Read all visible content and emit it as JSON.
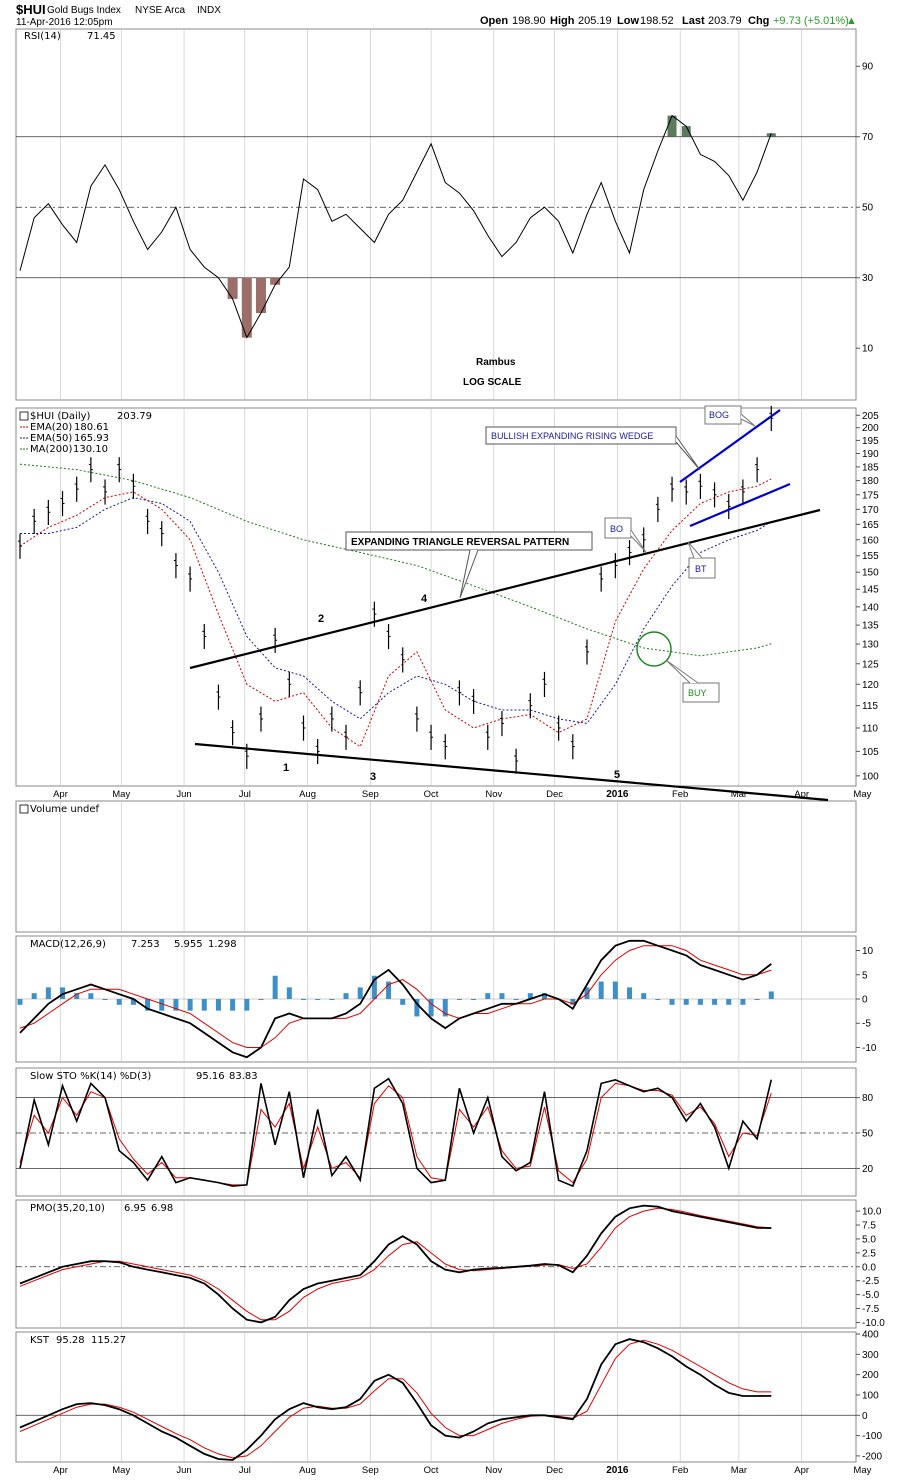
{
  "header": {
    "symbol": "$HUI",
    "name": "Gold Bugs Index",
    "exchange": "NYSE Arca",
    "type": "INDX",
    "datetime": "11-Apr-2016 12:05pm",
    "open_label": "Open",
    "open": "198.90",
    "high_label": "High",
    "high": "205.19",
    "low_label": "Low",
    "low": "198.52",
    "last_label": "Last",
    "last": "203.79",
    "chg_label": "Chg",
    "chg": "+9.73 (+5.01%)",
    "chg_arrow": "▲"
  },
  "colors": {
    "price": "#000000",
    "ema20": "#cc0000",
    "ema50": "#1a1a99",
    "ma200": "#1e7a1e",
    "rsi_over": "#5c7a5c",
    "rsi_under": "#9b6e6a",
    "hist": "#3d8fc7",
    "signal": "#dd0000",
    "wedge": "#0000cc",
    "grid": "#c0c0c0"
  },
  "x_axis": {
    "months": [
      {
        "label": "Apr",
        "bold": false
      },
      {
        "label": "May",
        "bold": false
      },
      {
        "label": "Jun",
        "bold": false
      },
      {
        "label": "Jul",
        "bold": false
      },
      {
        "label": "Aug",
        "bold": false
      },
      {
        "label": "Sep",
        "bold": false
      },
      {
        "label": "Oct",
        "bold": false
      },
      {
        "label": "Nov",
        "bold": false
      },
      {
        "label": "Dec",
        "bold": false
      },
      {
        "label": "2016",
        "bold": true
      },
      {
        "label": "Feb",
        "bold": false
      },
      {
        "label": "Mar",
        "bold": false
      },
      {
        "label": "Apr",
        "bold": false
      },
      {
        "label": "May",
        "bold": false
      }
    ]
  },
  "chart_data": [
    {
      "panel": "rsi",
      "type": "line",
      "title": "RSI(14)",
      "value": "71.45",
      "y_ticks": [
        "90",
        "70",
        "50",
        "30",
        "10"
      ],
      "levels": [
        70,
        50,
        30
      ],
      "ylim": [
        0,
        100
      ],
      "x_days": [
        0,
        7,
        14,
        21,
        28,
        35,
        42,
        49,
        56,
        63,
        70,
        77,
        84,
        91,
        98,
        105,
        112,
        119,
        126,
        133,
        140,
        147,
        154,
        161,
        168,
        175,
        182,
        189,
        196,
        203,
        210,
        217,
        224,
        231,
        238,
        245,
        252,
        259,
        266,
        273,
        280,
        287,
        294,
        301,
        308,
        315,
        322,
        329,
        336,
        343,
        350,
        357,
        364,
        371
      ],
      "values": [
        32,
        47,
        51,
        45,
        40,
        56,
        62,
        55,
        46,
        38,
        43,
        50,
        38,
        33,
        30,
        24,
        13,
        20,
        28,
        33,
        58,
        55,
        46,
        48,
        44,
        40,
        48,
        52,
        60,
        68,
        57,
        54,
        49,
        42,
        36,
        40,
        47,
        50,
        46,
        37,
        48,
        57,
        46,
        37,
        55,
        66,
        76,
        73,
        65,
        63,
        59,
        52,
        60,
        71
      ]
    },
    {
      "panel": "price",
      "type": "line",
      "title": "$HUI (Daily)",
      "value": "203.79",
      "scale": "log",
      "y_ticks": [
        "205",
        "200",
        "195",
        "190",
        "185",
        "180",
        "175",
        "170",
        "165",
        "160",
        "155",
        "150",
        "145",
        "140",
        "135",
        "130",
        "125",
        "120",
        "115",
        "110",
        "105",
        "100"
      ],
      "ylim": [
        98,
        208
      ],
      "series": [
        {
          "name": "$HUI (Daily)",
          "value": "203.79",
          "x_days": [
            0,
            7,
            14,
            21,
            28,
            35,
            42,
            49,
            56,
            63,
            70,
            77,
            84,
            91,
            98,
            105,
            112,
            119,
            126,
            133,
            140,
            147,
            154,
            161,
            168,
            175,
            182,
            189,
            196,
            203,
            210,
            217,
            224,
            231,
            238,
            245,
            252,
            259,
            266,
            273,
            280,
            287,
            294,
            301,
            308,
            315,
            322,
            329,
            336,
            343,
            350,
            357,
            364,
            371
          ],
          "values": [
            158,
            166,
            169,
            172,
            177,
            184,
            176,
            184,
            178,
            166,
            162,
            152,
            148,
            132,
            117,
            109,
            104,
            112,
            131,
            120,
            110,
            105,
            112,
            108,
            118,
            138,
            132,
            126,
            112,
            108,
            106,
            118,
            116,
            108,
            111,
            103,
            115,
            120,
            110,
            106,
            128,
            148,
            152,
            156,
            160,
            170,
            177,
            176,
            178,
            175,
            171,
            176,
            184,
            203.79
          ]
        },
        {
          "name": "EMA(20)",
          "value": "180.61",
          "x_days": [
            0,
            14,
            28,
            42,
            56,
            70,
            84,
            98,
            112,
            126,
            140,
            154,
            168,
            182,
            196,
            210,
            224,
            238,
            252,
            266,
            280,
            294,
            308,
            322,
            336,
            350,
            364,
            371
          ],
          "values": [
            158,
            164,
            168,
            174,
            176,
            170,
            160,
            138,
            120,
            116,
            118,
            110,
            106,
            122,
            128,
            114,
            110,
            112,
            113,
            109,
            112,
            136,
            151,
            163,
            172,
            176,
            178,
            180.61
          ]
        },
        {
          "name": "EMA(50)",
          "value": "165.93",
          "x_days": [
            0,
            14,
            28,
            42,
            56,
            70,
            84,
            98,
            112,
            126,
            140,
            154,
            168,
            182,
            196,
            210,
            224,
            238,
            252,
            266,
            280,
            294,
            308,
            322,
            336,
            350,
            364,
            371
          ],
          "values": [
            162,
            162,
            164,
            170,
            174,
            172,
            166,
            150,
            132,
            124,
            122,
            116,
            112,
            118,
            122,
            120,
            116,
            114,
            114,
            112,
            111,
            120,
            134,
            146,
            156,
            160,
            163,
            165.93
          ]
        },
        {
          "name": "MA(200)",
          "value": "130.10",
          "x_days": [
            0,
            28,
            56,
            84,
            112,
            140,
            168,
            196,
            224,
            252,
            280,
            308,
            322,
            336,
            350,
            364,
            371
          ],
          "values": [
            186,
            184,
            180,
            174,
            166,
            160,
            156,
            152,
            146,
            140,
            134,
            129,
            128,
            127,
            128,
            129,
            130.1
          ]
        }
      ]
    },
    {
      "panel": "volume",
      "type": "bar",
      "title": "Volume undef",
      "values": []
    },
    {
      "panel": "macd",
      "type": "line",
      "title": "MACD(12,26,9)",
      "macd": "7.253",
      "signal": "5.955",
      "histogram": "1.298",
      "y_ticks": [
        "10",
        "5",
        "0",
        "-5",
        "-10"
      ],
      "ylim": [
        -13,
        13
      ],
      "x_days": [
        0,
        7,
        14,
        21,
        28,
        35,
        42,
        49,
        56,
        63,
        70,
        77,
        84,
        91,
        98,
        105,
        112,
        119,
        126,
        133,
        140,
        147,
        154,
        161,
        168,
        175,
        182,
        189,
        196,
        203,
        210,
        217,
        224,
        231,
        238,
        245,
        252,
        259,
        266,
        273,
        280,
        287,
        294,
        301,
        308,
        315,
        322,
        329,
        336,
        343,
        350,
        357,
        364,
        371
      ],
      "macd_values": [
        -7,
        -4,
        -1,
        1,
        2,
        3,
        2,
        1,
        0,
        -2,
        -3,
        -4,
        -5,
        -7,
        -9,
        -11,
        -12,
        -10,
        -4,
        -3,
        -4,
        -4,
        -4,
        -3,
        -1,
        4,
        6,
        3,
        -1,
        -4,
        -6,
        -4,
        -3,
        -2,
        -1,
        -1,
        0,
        1,
        0,
        -2,
        3,
        8,
        11,
        12,
        12,
        11,
        10,
        9,
        7,
        6,
        5,
        4,
        5,
        7.253
      ],
      "signal_values": [
        -6,
        -5,
        -3,
        -1,
        1,
        2,
        2,
        2,
        1,
        0,
        -1,
        -2,
        -3,
        -5,
        -7,
        -9,
        -10,
        -10,
        -8,
        -5,
        -4,
        -4,
        -4,
        -4,
        -3,
        0,
        3,
        4,
        2,
        -1,
        -3,
        -4,
        -3,
        -3,
        -2,
        -1,
        -1,
        0,
        0,
        -1,
        1,
        5,
        8,
        10,
        11,
        11,
        11,
        10,
        8,
        7,
        6,
        5,
        5,
        5.955
      ]
    },
    {
      "panel": "sto",
      "type": "line",
      "title": "Slow STO %K(14) %D(3)",
      "k": "95.16",
      "d": "83.83",
      "y_ticks": [
        "80",
        "50",
        "20"
      ],
      "levels": [
        80,
        50,
        20
      ],
      "ylim": [
        0,
        100
      ],
      "x_days": [
        0,
        7,
        14,
        21,
        28,
        35,
        42,
        49,
        56,
        63,
        70,
        77,
        84,
        91,
        98,
        105,
        112,
        119,
        126,
        133,
        140,
        147,
        154,
        161,
        168,
        175,
        182,
        189,
        196,
        203,
        210,
        217,
        224,
        231,
        238,
        245,
        252,
        259,
        266,
        273,
        280,
        287,
        294,
        301,
        308,
        315,
        322,
        329,
        336,
        343,
        350,
        357,
        364,
        371
      ],
      "k_values": [
        20,
        78,
        40,
        90,
        60,
        92,
        80,
        35,
        25,
        10,
        30,
        8,
        12,
        10,
        8,
        5,
        6,
        92,
        40,
        85,
        12,
        70,
        14,
        30,
        10,
        88,
        96,
        75,
        20,
        8,
        10,
        88,
        50,
        80,
        30,
        18,
        25,
        85,
        10,
        5,
        35,
        92,
        95,
        90,
        85,
        88,
        80,
        60,
        75,
        55,
        20,
        60,
        45,
        95.16
      ],
      "d_values": [
        25,
        65,
        50,
        80,
        65,
        85,
        80,
        45,
        28,
        15,
        25,
        12,
        12,
        10,
        8,
        6,
        6,
        70,
        55,
        75,
        20,
        55,
        20,
        25,
        12,
        75,
        90,
        80,
        30,
        12,
        10,
        70,
        55,
        72,
        35,
        20,
        22,
        72,
        18,
        8,
        28,
        80,
        92,
        90,
        86,
        86,
        82,
        65,
        72,
        58,
        30,
        50,
        48,
        83.83
      ]
    },
    {
      "panel": "pmo",
      "type": "line",
      "title": "PMO(35,20,10)",
      "pmo": "6.95",
      "signal": "6.98",
      "y_ticks": [
        "10.0",
        "7.5",
        "5.0",
        "2.5",
        "0.0",
        "-2.5",
        "-5.0",
        "-7.5",
        "-10.0"
      ],
      "ylim": [
        -11,
        12
      ],
      "x_days": [
        0,
        7,
        14,
        21,
        28,
        35,
        42,
        49,
        56,
        63,
        70,
        77,
        84,
        91,
        98,
        105,
        112,
        119,
        126,
        133,
        140,
        147,
        154,
        161,
        168,
        175,
        182,
        189,
        196,
        203,
        210,
        217,
        224,
        231,
        238,
        245,
        252,
        259,
        266,
        273,
        280,
        287,
        294,
        301,
        308,
        315,
        322,
        329,
        336,
        343,
        350,
        357,
        364,
        371
      ],
      "pmo_values": [
        -3,
        -2,
        -1,
        0,
        0.5,
        1,
        1,
        0.8,
        0,
        -0.5,
        -1,
        -1.5,
        -2,
        -3,
        -5,
        -7.5,
        -9.5,
        -10,
        -9,
        -6,
        -4,
        -3,
        -2.5,
        -2,
        -1.5,
        1,
        4,
        5.5,
        4,
        1,
        -0.5,
        -1,
        -0.5,
        -0.3,
        -0.2,
        0,
        0.2,
        0.5,
        0.3,
        -1,
        2,
        6,
        9,
        10.5,
        11,
        10.8,
        10,
        9.5,
        9,
        8.5,
        8,
        7.5,
        7,
        6.95
      ],
      "signal_values": [
        -3.5,
        -2.5,
        -1.5,
        -0.5,
        0,
        0.5,
        1,
        1,
        0.5,
        0,
        -0.5,
        -1,
        -1.5,
        -2.5,
        -4,
        -6,
        -8,
        -9.5,
        -9.5,
        -8,
        -5.5,
        -4,
        -3,
        -2.5,
        -2,
        -0.5,
        2,
        4,
        4.5,
        2.5,
        0.5,
        -0.5,
        -0.7,
        -0.5,
        -0.3,
        -0.1,
        0.1,
        0.3,
        0.4,
        -0.3,
        0.5,
        3.5,
        7,
        9,
        10,
        10.5,
        10.3,
        9.8,
        9.2,
        8.7,
        8.2,
        7.7,
        7.2,
        6.98
      ]
    },
    {
      "panel": "kst",
      "type": "line",
      "title": "KST",
      "kst": "95.28",
      "signal": "115.27",
      "y_ticks": [
        "400",
        "300",
        "200",
        "100",
        "0",
        "-100",
        "-200"
      ],
      "ylim": [
        -230,
        410
      ],
      "x_days": [
        0,
        7,
        14,
        21,
        28,
        35,
        42,
        49,
        56,
        63,
        70,
        77,
        84,
        91,
        98,
        105,
        112,
        119,
        126,
        133,
        140,
        147,
        154,
        161,
        168,
        175,
        182,
        189,
        196,
        203,
        210,
        217,
        224,
        231,
        238,
        245,
        252,
        259,
        266,
        273,
        280,
        287,
        294,
        301,
        308,
        315,
        322,
        329,
        336,
        343,
        350,
        357,
        364,
        371
      ],
      "kst_values": [
        -60,
        -30,
        0,
        30,
        55,
        60,
        50,
        30,
        0,
        -40,
        -80,
        -110,
        -150,
        -190,
        -215,
        -220,
        -170,
        -100,
        -20,
        30,
        60,
        40,
        30,
        40,
        80,
        170,
        200,
        160,
        60,
        -50,
        -100,
        -110,
        -80,
        -40,
        -20,
        -10,
        0,
        0,
        -10,
        -20,
        80,
        250,
        350,
        375,
        360,
        330,
        290,
        240,
        200,
        150,
        110,
        95,
        95,
        95.28
      ],
      "signal_values": [
        -80,
        -50,
        -20,
        10,
        40,
        55,
        55,
        40,
        15,
        -20,
        -55,
        -90,
        -120,
        -160,
        -190,
        -210,
        -200,
        -150,
        -80,
        -10,
        35,
        45,
        35,
        35,
        55,
        120,
        180,
        180,
        110,
        10,
        -60,
        -100,
        -100,
        -70,
        -40,
        -20,
        -5,
        0,
        -5,
        -15,
        20,
        150,
        280,
        350,
        370,
        350,
        320,
        280,
        240,
        200,
        160,
        130,
        115,
        115.27
      ]
    }
  ],
  "annotations": {
    "rambus": "Rambus",
    "log_scale": "LOG SCALE",
    "triangle_label": "EXPANDING TRIANGLE REVERSAL PATTERN",
    "wedge_label": "BULLISH EXPANDING RISING WEDGE",
    "bo": "BO",
    "bt": "BT",
    "bog": "BOG",
    "buy": "BUY",
    "points": [
      "1",
      "2",
      "3",
      "4",
      "5"
    ]
  }
}
